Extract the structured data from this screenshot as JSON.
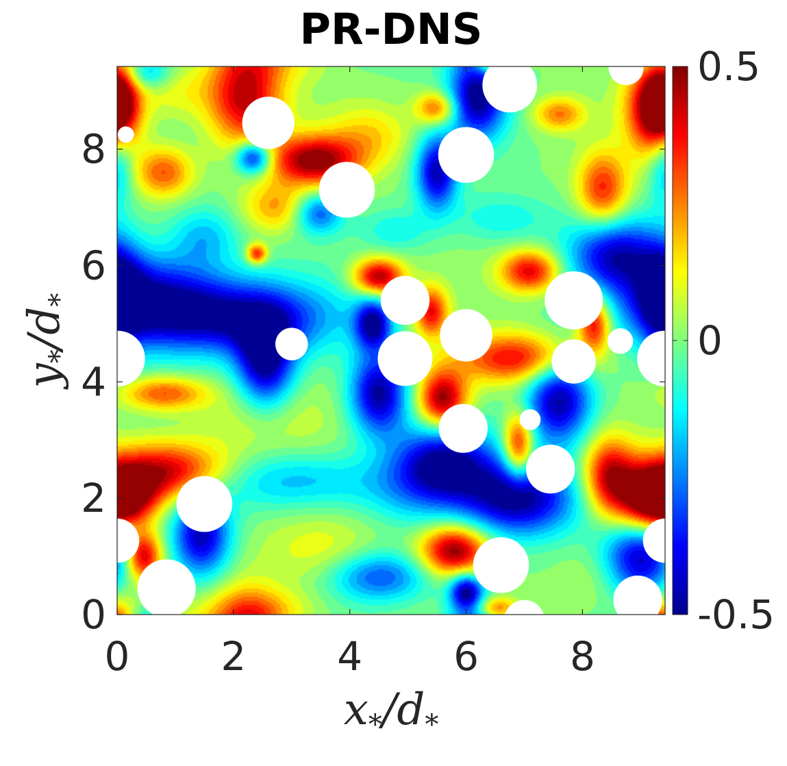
{
  "chart_data": {
    "type": "heatmap",
    "title": "PR-DNS",
    "xlabel": {
      "var": "x",
      "sub": "*",
      "den": "d",
      "densub": "*"
    },
    "ylabel": {
      "var": "y",
      "sub": "*",
      "den": "d",
      "densub": "*"
    },
    "xlim": [
      0,
      9.42
    ],
    "ylim": [
      0,
      9.42
    ],
    "xticks": [
      "0",
      "2",
      "4",
      "6",
      "8"
    ],
    "yticks": [
      "0",
      "2",
      "4",
      "6",
      "8"
    ],
    "colorbar": {
      "range": [
        -0.5,
        0.5
      ],
      "tick_labels": [
        "0.5",
        "0",
        "-0.5"
      ],
      "colormap": "jet"
    },
    "particles": [
      {
        "x": 0.15,
        "y": 8.25,
        "r": 0.14
      },
      {
        "x": 2.6,
        "y": 8.45,
        "r": 0.45
      },
      {
        "x": 3.95,
        "y": 7.3,
        "r": 0.48
      },
      {
        "x": 6.0,
        "y": 7.9,
        "r": 0.48
      },
      {
        "x": 6.75,
        "y": 9.1,
        "r": 0.47
      },
      {
        "x": 8.75,
        "y": 9.4,
        "r": 0.3
      },
      {
        "x": 4.95,
        "y": 5.4,
        "r": 0.42
      },
      {
        "x": 7.85,
        "y": 5.4,
        "r": 0.5
      },
      {
        "x": 6.0,
        "y": 4.8,
        "r": 0.45
      },
      {
        "x": 3.0,
        "y": 4.65,
        "r": 0.28
      },
      {
        "x": 4.95,
        "y": 4.4,
        "r": 0.47
      },
      {
        "x": 7.85,
        "y": 4.35,
        "r": 0.38
      },
      {
        "x": 8.65,
        "y": 4.7,
        "r": 0.22
      },
      {
        "x": 9.42,
        "y": 4.4,
        "r": 0.48
      },
      {
        "x": 0.0,
        "y": 4.4,
        "r": 0.48
      },
      {
        "x": 5.95,
        "y": 3.2,
        "r": 0.42
      },
      {
        "x": 7.1,
        "y": 3.35,
        "r": 0.18
      },
      {
        "x": 7.45,
        "y": 2.5,
        "r": 0.42
      },
      {
        "x": 1.5,
        "y": 1.9,
        "r": 0.48
      },
      {
        "x": 9.42,
        "y": 1.27,
        "r": 0.38
      },
      {
        "x": 0.0,
        "y": 1.27,
        "r": 0.38
      },
      {
        "x": 0.85,
        "y": 0.45,
        "r": 0.5
      },
      {
        "x": 6.6,
        "y": 0.85,
        "r": 0.48
      },
      {
        "x": 7.0,
        "y": -0.1,
        "r": 0.35
      },
      {
        "x": 8.95,
        "y": 0.25,
        "r": 0.42
      }
    ],
    "features": [
      {
        "x": 2.2,
        "y": 8.9,
        "a": 0.45,
        "rx": 0.45,
        "ry": 0.6
      },
      {
        "x": 0.0,
        "y": 8.8,
        "a": 0.4,
        "rx": 0.25,
        "ry": 0.5
      },
      {
        "x": 9.25,
        "y": 8.7,
        "a": 0.48,
        "rx": 0.35,
        "ry": 0.55
      },
      {
        "x": 3.4,
        "y": 7.8,
        "a": 0.5,
        "rx": 0.55,
        "ry": 0.3
      },
      {
        "x": 0.8,
        "y": 7.6,
        "a": 0.3,
        "rx": 0.35,
        "ry": 0.3
      },
      {
        "x": 8.35,
        "y": 7.3,
        "a": 0.35,
        "rx": 0.3,
        "ry": 0.45
      },
      {
        "x": 2.75,
        "y": 7.0,
        "a": 0.22,
        "rx": 0.4,
        "ry": 0.3
      },
      {
        "x": 5.5,
        "y": 8.7,
        "a": 0.32,
        "rx": 0.25,
        "ry": 0.2
      },
      {
        "x": 7.6,
        "y": 8.6,
        "a": 0.25,
        "rx": 0.3,
        "ry": 0.2
      },
      {
        "x": 4.35,
        "y": 8.25,
        "a": 0.15,
        "rx": 0.5,
        "ry": 0.35
      },
      {
        "x": 1.0,
        "y": 9.0,
        "a": 0.12,
        "rx": 0.5,
        "ry": 0.35
      },
      {
        "x": 6.2,
        "y": 8.9,
        "a": -0.5,
        "rx": 0.35,
        "ry": 0.5
      },
      {
        "x": 5.5,
        "y": 7.6,
        "a": -0.45,
        "rx": 0.25,
        "ry": 0.45
      },
      {
        "x": 2.35,
        "y": 7.85,
        "a": -0.45,
        "rx": 0.22,
        "ry": 0.2
      },
      {
        "x": 3.45,
        "y": 6.9,
        "a": -0.3,
        "rx": 0.3,
        "ry": 0.25
      },
      {
        "x": 8.55,
        "y": 6.2,
        "a": -0.4,
        "rx": 0.55,
        "ry": 0.45
      },
      {
        "x": 0.5,
        "y": 5.4,
        "a": -0.45,
        "rx": 0.9,
        "ry": 0.55
      },
      {
        "x": 2.2,
        "y": 5.1,
        "a": -0.42,
        "rx": 1.1,
        "ry": 0.45
      },
      {
        "x": 2.55,
        "y": 4.3,
        "a": -0.48,
        "rx": 0.35,
        "ry": 0.55
      },
      {
        "x": 4.4,
        "y": 5.0,
        "a": -0.45,
        "rx": 0.22,
        "ry": 0.3
      },
      {
        "x": 4.5,
        "y": 3.8,
        "a": -0.48,
        "rx": 0.35,
        "ry": 0.5
      },
      {
        "x": 5.6,
        "y": 2.6,
        "a": -0.48,
        "rx": 0.6,
        "ry": 0.45
      },
      {
        "x": 6.9,
        "y": 2.0,
        "a": -0.5,
        "rx": 0.7,
        "ry": 0.45
      },
      {
        "x": 7.6,
        "y": 3.7,
        "a": -0.48,
        "rx": 0.4,
        "ry": 0.55
      },
      {
        "x": 1.45,
        "y": 1.35,
        "a": -0.45,
        "rx": 0.35,
        "ry": 0.5
      },
      {
        "x": 4.5,
        "y": 0.65,
        "a": -0.3,
        "rx": 0.6,
        "ry": 0.3
      },
      {
        "x": 6.0,
        "y": 0.4,
        "a": -0.45,
        "rx": 0.2,
        "ry": 0.22
      },
      {
        "x": 9.0,
        "y": 1.0,
        "a": -0.48,
        "rx": 0.45,
        "ry": 0.5
      },
      {
        "x": 9.42,
        "y": 5.5,
        "a": -0.35,
        "rx": 0.3,
        "ry": 0.6
      },
      {
        "x": 9.42,
        "y": 7.8,
        "a": -0.25,
        "rx": 0.2,
        "ry": 0.5
      },
      {
        "x": 3.0,
        "y": 2.3,
        "a": -0.2,
        "rx": 1.2,
        "ry": 0.35
      },
      {
        "x": 0.5,
        "y": 9.3,
        "a": -0.22,
        "rx": 0.3,
        "ry": 0.2
      },
      {
        "x": 4.5,
        "y": 5.8,
        "a": 0.48,
        "rx": 0.3,
        "ry": 0.22
      },
      {
        "x": 5.4,
        "y": 5.2,
        "a": 0.38,
        "rx": 0.2,
        "ry": 0.3
      },
      {
        "x": 7.1,
        "y": 5.9,
        "a": 0.4,
        "rx": 0.35,
        "ry": 0.25
      },
      {
        "x": 8.2,
        "y": 5.0,
        "a": 0.42,
        "rx": 0.2,
        "ry": 0.35
      },
      {
        "x": 6.9,
        "y": 4.4,
        "a": 0.4,
        "rx": 0.75,
        "ry": 0.3
      },
      {
        "x": 5.6,
        "y": 3.7,
        "a": 0.5,
        "rx": 0.3,
        "ry": 0.35
      },
      {
        "x": 6.9,
        "y": 2.9,
        "a": 0.42,
        "rx": 0.18,
        "ry": 0.4
      },
      {
        "x": 0.85,
        "y": 2.45,
        "a": 0.48,
        "rx": 0.75,
        "ry": 0.35
      },
      {
        "x": 0.1,
        "y": 2.0,
        "a": 0.4,
        "rx": 0.4,
        "ry": 0.3
      },
      {
        "x": 8.45,
        "y": 2.4,
        "a": 0.38,
        "rx": 0.3,
        "ry": 0.45
      },
      {
        "x": 9.15,
        "y": 1.95,
        "a": 0.5,
        "rx": 0.45,
        "ry": 0.45
      },
      {
        "x": 0.45,
        "y": 1.0,
        "a": 0.45,
        "rx": 0.22,
        "ry": 0.3
      },
      {
        "x": 5.8,
        "y": 1.1,
        "a": 0.5,
        "rx": 0.4,
        "ry": 0.3
      },
      {
        "x": 0.8,
        "y": 3.8,
        "a": 0.3,
        "rx": 0.5,
        "ry": 0.2
      },
      {
        "x": 2.4,
        "y": 6.2,
        "a": 0.38,
        "rx": 0.12,
        "ry": 0.12
      },
      {
        "x": 6.5,
        "y": 0.1,
        "a": 0.35,
        "rx": 0.25,
        "ry": 0.15
      },
      {
        "x": 2.6,
        "y": 0.1,
        "a": 0.12,
        "rx": 0.6,
        "ry": 0.25
      },
      {
        "x": 1.5,
        "y": 6.5,
        "a": -0.18,
        "rx": 0.4,
        "ry": 0.35
      },
      {
        "x": 6.6,
        "y": 6.8,
        "a": -0.12,
        "rx": 0.6,
        "ry": 0.3
      },
      {
        "x": 4.8,
        "y": 6.6,
        "a": -0.12,
        "rx": 0.4,
        "ry": 0.25
      },
      {
        "x": 2.4,
        "y": 3.4,
        "a": 0.1,
        "rx": 0.8,
        "ry": 0.5
      },
      {
        "x": 3.5,
        "y": 1.1,
        "a": 0.12,
        "rx": 0.7,
        "ry": 0.45
      },
      {
        "x": 8.3,
        "y": 0.6,
        "a": 0.08,
        "rx": 0.5,
        "ry": 0.4
      },
      {
        "x": 5.0,
        "y": 2.0,
        "a": -0.1,
        "rx": 0.6,
        "ry": 0.4
      }
    ]
  }
}
